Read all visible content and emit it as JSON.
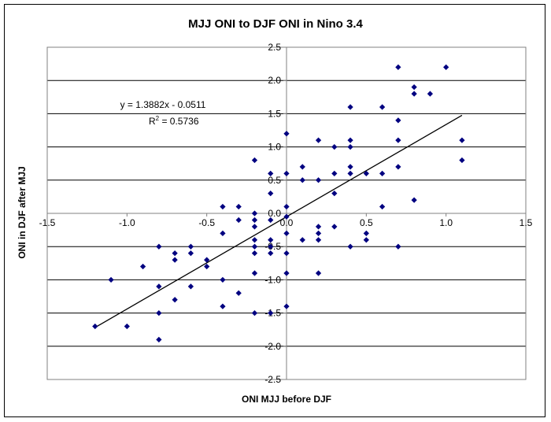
{
  "chart_data": {
    "type": "scatter",
    "title": "MJJ ONI to DJF ONI in Nino 3.4",
    "xlabel": "ONI MJJ before DJF",
    "ylabel": "ONI in DJF after MJJ",
    "xlim": [
      -1.5,
      1.5
    ],
    "ylim": [
      -2.5,
      2.5
    ],
    "xticks": [
      -1.5,
      -1.0,
      -0.5,
      0.0,
      0.5,
      1.0,
      1.5
    ],
    "xtick_labels": [
      "-1.5",
      "-1.0",
      "-0.5",
      "0.0",
      "0.5",
      "1.0",
      "1.5"
    ],
    "yticks": [
      -2.5,
      -2.0,
      -1.5,
      -1.0,
      -0.5,
      0.0,
      0.5,
      1.0,
      1.5,
      2.0,
      2.5
    ],
    "ytick_labels": [
      "-2.5",
      "-2.0",
      "-1.5",
      "-1.0",
      "-0.5",
      "0.0",
      "0.5",
      "1.0",
      "1.5",
      "2.0",
      "2.5"
    ],
    "grid": "horizontal",
    "marker_color": "#000080",
    "trendline": {
      "slope": 1.3882,
      "intercept": -0.0511,
      "x_range": [
        -1.2,
        1.1
      ],
      "equation_text": "y = 1.3882x - 0.0511",
      "r2_label": "R",
      "r2_sup": "2",
      "r2_value_text": " = 0.5736"
    },
    "points": [
      {
        "x": -1.2,
        "y": -1.7
      },
      {
        "x": -1.1,
        "y": -1.0
      },
      {
        "x": -1.0,
        "y": -1.7
      },
      {
        "x": -0.9,
        "y": -0.8
      },
      {
        "x": -0.8,
        "y": -0.5
      },
      {
        "x": -0.8,
        "y": -1.1
      },
      {
        "x": -0.8,
        "y": -1.5
      },
      {
        "x": -0.8,
        "y": -1.9
      },
      {
        "x": -0.7,
        "y": -0.6
      },
      {
        "x": -0.7,
        "y": -0.7
      },
      {
        "x": -0.7,
        "y": -1.3
      },
      {
        "x": -0.6,
        "y": -0.5
      },
      {
        "x": -0.6,
        "y": -0.6
      },
      {
        "x": -0.6,
        "y": -1.1
      },
      {
        "x": -0.5,
        "y": -0.7
      },
      {
        "x": -0.5,
        "y": -0.8
      },
      {
        "x": -0.4,
        "y": 0.1
      },
      {
        "x": -0.4,
        "y": -0.3
      },
      {
        "x": -0.4,
        "y": -1.0
      },
      {
        "x": -0.4,
        "y": -1.4
      },
      {
        "x": -0.3,
        "y": 0.1
      },
      {
        "x": -0.3,
        "y": -0.1
      },
      {
        "x": -0.3,
        "y": -1.2
      },
      {
        "x": -0.2,
        "y": 0.8
      },
      {
        "x": -0.2,
        "y": 0.0
      },
      {
        "x": -0.2,
        "y": -0.1
      },
      {
        "x": -0.2,
        "y": -0.2
      },
      {
        "x": -0.2,
        "y": -0.4
      },
      {
        "x": -0.2,
        "y": -0.5
      },
      {
        "x": -0.2,
        "y": -0.6
      },
      {
        "x": -0.2,
        "y": -0.9
      },
      {
        "x": -0.2,
        "y": -1.5
      },
      {
        "x": -0.1,
        "y": 0.6
      },
      {
        "x": -0.1,
        "y": 0.3
      },
      {
        "x": -0.1,
        "y": -0.1
      },
      {
        "x": -0.1,
        "y": -0.4
      },
      {
        "x": -0.1,
        "y": -0.5
      },
      {
        "x": -0.1,
        "y": -0.6
      },
      {
        "x": -0.1,
        "y": -1.5
      },
      {
        "x": 0.0,
        "y": 1.2
      },
      {
        "x": 0.0,
        "y": 0.6
      },
      {
        "x": 0.0,
        "y": 0.1
      },
      {
        "x": 0.0,
        "y": -0.05
      },
      {
        "x": 0.0,
        "y": -0.3
      },
      {
        "x": 0.0,
        "y": -0.6
      },
      {
        "x": 0.0,
        "y": -0.9
      },
      {
        "x": 0.0,
        "y": -1.4
      },
      {
        "x": 0.1,
        "y": 0.7
      },
      {
        "x": 0.1,
        "y": 0.5
      },
      {
        "x": 0.1,
        "y": -0.4
      },
      {
        "x": 0.2,
        "y": 1.1
      },
      {
        "x": 0.2,
        "y": 0.5
      },
      {
        "x": 0.2,
        "y": -0.2
      },
      {
        "x": 0.2,
        "y": -0.3
      },
      {
        "x": 0.2,
        "y": -0.4
      },
      {
        "x": 0.2,
        "y": -0.9
      },
      {
        "x": 0.3,
        "y": 1.0
      },
      {
        "x": 0.3,
        "y": 0.6
      },
      {
        "x": 0.3,
        "y": 0.3
      },
      {
        "x": 0.3,
        "y": -0.2
      },
      {
        "x": 0.4,
        "y": 1.6
      },
      {
        "x": 0.4,
        "y": 1.1
      },
      {
        "x": 0.4,
        "y": 1.0
      },
      {
        "x": 0.4,
        "y": 0.7
      },
      {
        "x": 0.4,
        "y": 0.6
      },
      {
        "x": 0.4,
        "y": -0.5
      },
      {
        "x": 0.5,
        "y": 0.6
      },
      {
        "x": 0.5,
        "y": -0.3
      },
      {
        "x": 0.5,
        "y": -0.4
      },
      {
        "x": 0.6,
        "y": 1.6
      },
      {
        "x": 0.6,
        "y": 0.6
      },
      {
        "x": 0.6,
        "y": 0.1
      },
      {
        "x": 0.7,
        "y": 2.2
      },
      {
        "x": 0.7,
        "y": 1.4
      },
      {
        "x": 0.7,
        "y": 1.1
      },
      {
        "x": 0.7,
        "y": 0.7
      },
      {
        "x": 0.7,
        "y": -0.5
      },
      {
        "x": 0.8,
        "y": 1.9
      },
      {
        "x": 0.8,
        "y": 1.8
      },
      {
        "x": 0.8,
        "y": 0.2
      },
      {
        "x": 0.9,
        "y": 1.8
      },
      {
        "x": 1.0,
        "y": 2.2
      },
      {
        "x": 1.1,
        "y": 1.1
      },
      {
        "x": 1.1,
        "y": 0.8
      }
    ]
  }
}
